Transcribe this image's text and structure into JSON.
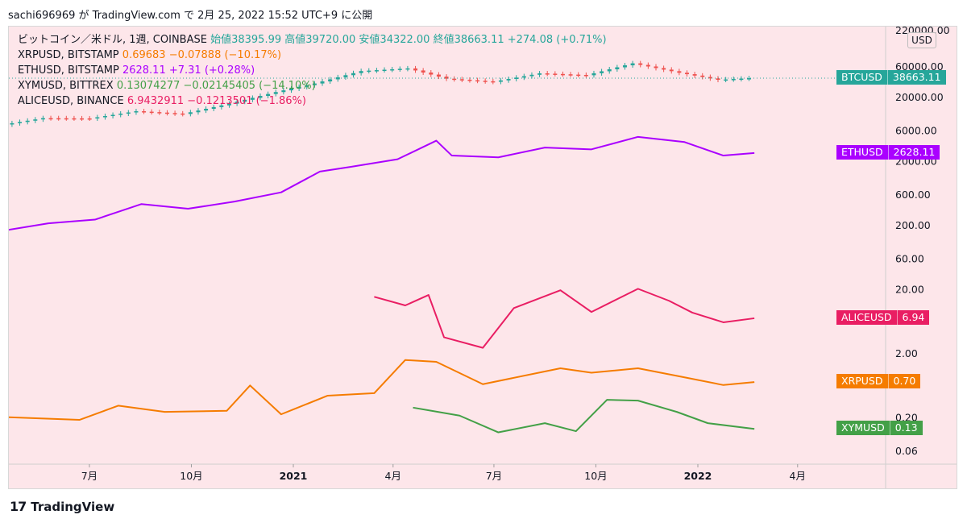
{
  "header": {
    "text": "sachi696969 が TradingView.com で 2月 25, 2022 15:52 UTC+9 に公開"
  },
  "footer": {
    "brand": "TradingView"
  },
  "legend": [
    {
      "symbol": "ビットコイン／米ドル, 1週, COINBASE",
      "values": "始値38395.99 高値39720.00 安値34322.00 終値38663.11 +274.08 (+0.71%)",
      "color": "#26a69a"
    },
    {
      "symbol": "XRPUSD, BITSTAMP",
      "values": "0.69683 −0.07888 (−10.17%)",
      "color": "#f57c00"
    },
    {
      "symbol": "ETHUSD, BITSTAMP",
      "values": "2628.11 +7.31 (+0.28%)",
      "color": "#aa00ff"
    },
    {
      "symbol": "XYMUSD, BITTREX",
      "values": "0.13074277 −0.02145405 (−14.10%)",
      "color": "#43a047"
    },
    {
      "symbol": "ALICEUSD, BINANCE",
      "values": "6.9432911 −0.1213501 (−1.86%)",
      "color": "#e91e63"
    }
  ],
  "price_scale": {
    "currency": "USD"
  },
  "chart_data": {
    "type": "line",
    "scale": "log",
    "x_ticks": [
      "7月",
      "10月",
      "2021",
      "4月",
      "7月",
      "10月",
      "2022",
      "4月"
    ],
    "y_ticks": [
      220000.0,
      60000.0,
      20000.0,
      6000.0,
      2000.0,
      600.0,
      200.0,
      60.0,
      20.0,
      2.0,
      0.2,
      0.06
    ],
    "y_tick_labels": [
      "220000.00",
      "60000.00",
      "20000.00",
      "6000.00",
      "2000.00",
      "600.00",
      "200.00",
      "60.00",
      "20.00",
      "2.00",
      "0.20",
      "0.06"
    ],
    "time_range": [
      "2020-04",
      "2022-04"
    ],
    "series": [
      {
        "name": "BTCUSD",
        "color": "#26a69a",
        "last": "38663.11",
        "x": [
          "2020-04-13",
          "2020-05-25",
          "2020-07-06",
          "2020-08-17",
          "2020-09-28",
          "2020-11-09",
          "2020-12-21",
          "2021-01-25",
          "2021-03-08",
          "2021-04-19",
          "2021-05-24",
          "2021-07-05",
          "2021-08-16",
          "2021-09-27",
          "2021-11-08",
          "2021-12-20",
          "2022-01-24",
          "2022-02-21"
        ],
        "values": [
          7000,
          9200,
          9100,
          11800,
          10700,
          15500,
          23500,
          32000,
          50000,
          55000,
          38000,
          34000,
          46000,
          43000,
          66000,
          47000,
          36500,
          38663
        ]
      },
      {
        "name": "ETHUSD",
        "color": "#aa00ff",
        "last": "2628.11",
        "x": [
          "2020-04-13",
          "2020-05-25",
          "2020-07-06",
          "2020-08-17",
          "2020-09-28",
          "2020-11-09",
          "2020-12-21",
          "2021-01-25",
          "2021-02-22",
          "2021-04-05",
          "2021-05-10",
          "2021-05-24",
          "2021-07-05",
          "2021-08-16",
          "2021-09-27",
          "2021-11-08",
          "2021-12-20",
          "2022-01-24",
          "2022-02-21"
        ],
        "values": [
          160,
          210,
          240,
          420,
          355,
          460,
          640,
          1350,
          1600,
          2100,
          4100,
          2400,
          2250,
          3200,
          3000,
          4700,
          3900,
          2400,
          2628
        ]
      },
      {
        "name": "ALICEUSD",
        "color": "#e91e63",
        "last": "6.94",
        "x": [
          "2021-03-15",
          "2021-04-12",
          "2021-05-03",
          "2021-05-17",
          "2021-06-21",
          "2021-07-19",
          "2021-08-30",
          "2021-09-27",
          "2021-11-08",
          "2021-12-06",
          "2021-12-27",
          "2022-01-24",
          "2022-02-21"
        ],
        "values": [
          15,
          11,
          16,
          3.5,
          2.4,
          10,
          19,
          8.7,
          20,
          13,
          8.5,
          6,
          6.94
        ]
      },
      {
        "name": "XRPUSD",
        "color": "#f57c00",
        "last": "0.70",
        "x": [
          "2020-04-13",
          "2020-06-22",
          "2020-07-27",
          "2020-09-07",
          "2020-11-02",
          "2020-11-23",
          "2020-12-21",
          "2021-02-01",
          "2021-03-15",
          "2021-04-12",
          "2021-05-10",
          "2021-06-21",
          "2021-08-30",
          "2021-09-27",
          "2021-11-08",
          "2021-12-20",
          "2022-01-24",
          "2022-02-21"
        ],
        "values": [
          0.2,
          0.18,
          0.3,
          0.24,
          0.25,
          0.62,
          0.22,
          0.43,
          0.47,
          1.55,
          1.45,
          0.65,
          1.15,
          0.98,
          1.15,
          0.83,
          0.63,
          0.7
        ]
      },
      {
        "name": "XYMUSD",
        "color": "#43a047",
        "last": "0.13",
        "x": [
          "2021-04-19",
          "2021-05-31",
          "2021-07-05",
          "2021-08-16",
          "2021-09-13",
          "2021-10-11",
          "2021-11-08",
          "2021-12-13",
          "2022-01-10",
          "2022-02-21"
        ],
        "values": [
          0.28,
          0.21,
          0.115,
          0.16,
          0.12,
          0.37,
          0.36,
          0.24,
          0.16,
          0.13
        ]
      }
    ]
  }
}
